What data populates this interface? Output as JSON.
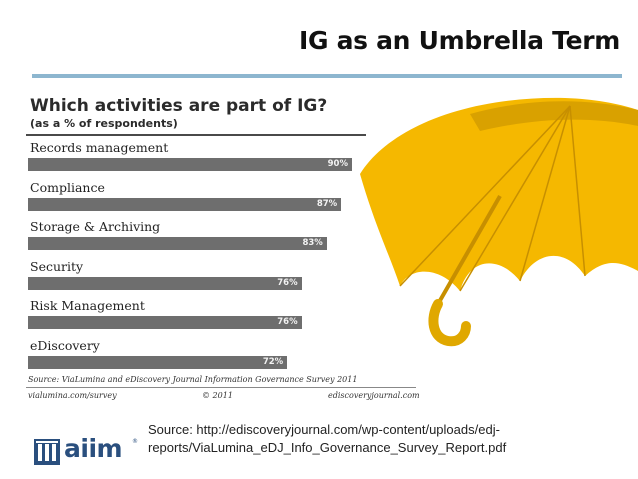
{
  "slide": {
    "title": "IG as an Umbrella Term",
    "source_line1": "Source: http://ediscoveryjournal.com/wp-content/uploads/edj-",
    "source_line2": "reports/ViaLumina_eDJ_Info_Governance_Survey_Report.pdf",
    "logo_text": "aiim",
    "logo_tm": "®"
  },
  "chart_data": {
    "type": "bar",
    "orientation": "horizontal",
    "title": "Which activities are part of IG?",
    "subtitle": "(as a % of respondents)",
    "categories": [
      "Records management",
      "Compliance",
      "Storage & Archiving",
      "Security",
      "Risk Management",
      "eDiscovery"
    ],
    "values": [
      90,
      87,
      83,
      76,
      76,
      72
    ],
    "value_labels": [
      "90%",
      "87%",
      "83%",
      "76%",
      "76%",
      "72%"
    ],
    "xlim": [
      0,
      100
    ],
    "grid": false,
    "legend": "none",
    "bar_color": "#6e6e6e",
    "source": "Source:  ViaLumina and eDiscovery Journal Information Governance Survey 2011",
    "footer_left": "vialumina.com/survey",
    "footer_center": "© 2011",
    "footer_right": "ediscoveryjournal.com"
  },
  "colors": {
    "title_rule": "#8db6cf",
    "umbrella_yellow": "#f5b800",
    "umbrella_shadow": "#d9a100",
    "logo_blue": "#2a4f7e"
  },
  "icons": {
    "umbrella": "umbrella-illustration",
    "logo": "aiim-logo-mark"
  }
}
